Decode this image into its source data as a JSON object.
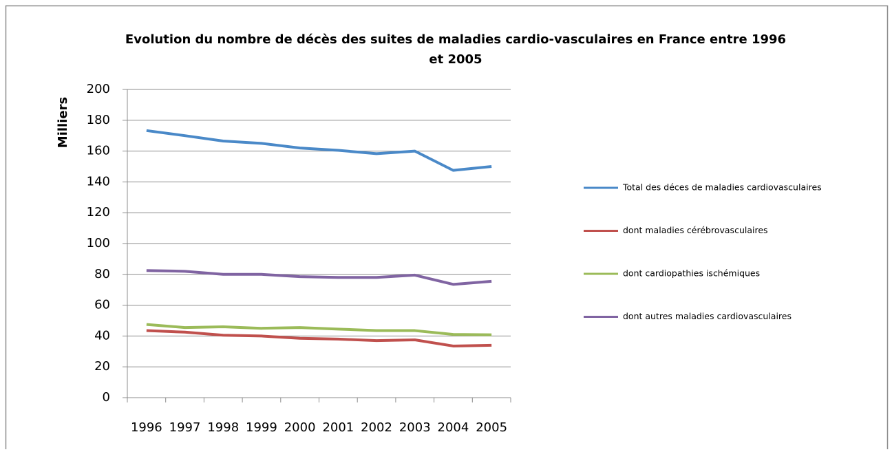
{
  "chart_data": {
    "type": "line",
    "title": "Evolution du nombre de décès des suites de maladies cardio-vasculaires en France entre 1996",
    "title_line2": "et 2005",
    "y_label": "Milliers",
    "categories": [
      "1996",
      "1997",
      "1998",
      "1999",
      "2000",
      "2001",
      "2002",
      "2003",
      "2004",
      "2005"
    ],
    "series": [
      {
        "name": "Total des déces de maladies cardiovasculaires",
        "color": "#4a89c8",
        "values": [
          173.3,
          170,
          166.5,
          165,
          162,
          160.5,
          158.3,
          160,
          147.5,
          150
        ]
      },
      {
        "name": "dont maladies cérébrovasculaires",
        "color": "#c0504d",
        "values": [
          43.5,
          42.5,
          40.5,
          40,
          38.5,
          38,
          37,
          37.5,
          33.5,
          34
        ]
      },
      {
        "name": "dont  cardiopathies ischémiques",
        "color": "#9bbb59",
        "values": [
          47.5,
          45.5,
          46,
          45,
          45.5,
          44.5,
          43.5,
          43.5,
          41,
          40.8
        ]
      },
      {
        "name": "dont autres maladies cardiovasculaires",
        "color": "#8064a2",
        "values": [
          82.5,
          82,
          80,
          80,
          78.5,
          78,
          78,
          79.5,
          73.5,
          75.5
        ]
      }
    ],
    "ylim": [
      0,
      200
    ],
    "yticks": [
      0,
      20,
      40,
      60,
      80,
      100,
      120,
      140,
      160,
      180,
      200
    ],
    "grid": true,
    "legend": "right"
  }
}
